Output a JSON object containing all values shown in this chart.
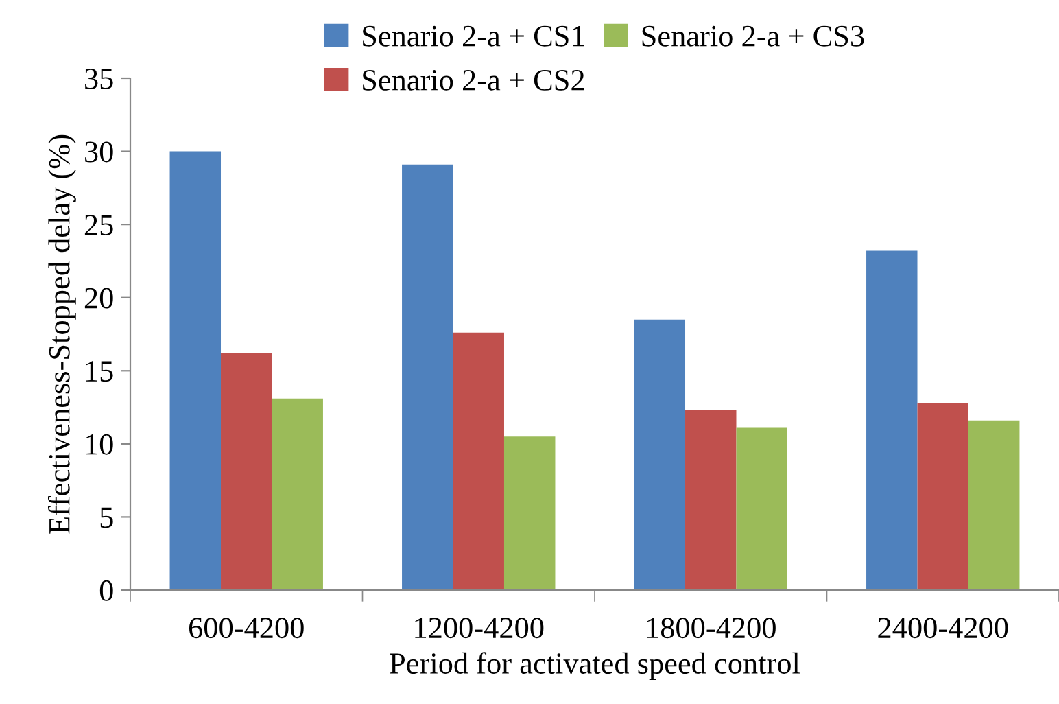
{
  "chart_data": {
    "type": "bar",
    "xlabel": "Period for activated speed control",
    "ylabel": "Effectiveness-Stopped delay (%)",
    "categories": [
      "600-4200",
      "1200-4200",
      "1800-4200",
      "2400-4200"
    ],
    "series": [
      {
        "name": "Senario 2-a + CS1",
        "color": "#4f81bd",
        "values": [
          30,
          29.1,
          18.5,
          23.2
        ]
      },
      {
        "name": "Senario 2-a + CS2",
        "color": "#c0504d",
        "values": [
          16.2,
          17.6,
          12.3,
          12.8
        ]
      },
      {
        "name": "Senario 2-a + CS3",
        "color": "#9bbb59",
        "values": [
          13.1,
          10.5,
          11.1,
          11.6
        ]
      }
    ],
    "ylim": [
      0,
      35
    ],
    "yticks": [
      0,
      5,
      10,
      15,
      20,
      25,
      30,
      35
    ],
    "grid": false,
    "legend": "top"
  }
}
